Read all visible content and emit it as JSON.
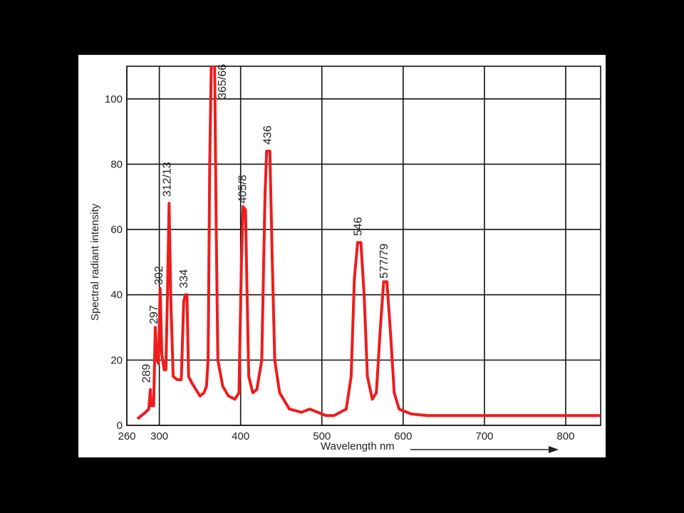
{
  "chart_data": {
    "type": "line",
    "xlabel": "Wavelength nm",
    "ylabel": "Spectral radiant intensity",
    "xlim": [
      260,
      843
    ],
    "ylim": [
      0,
      110
    ],
    "xticks": [
      260,
      300,
      400,
      500,
      600,
      700,
      800
    ],
    "yticks": [
      0,
      20,
      40,
      60,
      80,
      100
    ],
    "grid": true,
    "x": [
      273,
      278,
      283,
      287,
      289,
      290,
      293,
      295,
      297,
      299,
      301,
      303,
      306,
      308,
      310,
      312,
      314,
      317,
      322,
      327,
      330,
      332,
      334,
      336,
      340,
      345,
      350,
      355,
      358,
      360,
      362,
      364,
      368,
      370,
      372,
      378,
      385,
      393,
      398,
      401,
      403,
      406,
      408,
      410,
      415,
      420,
      426,
      430,
      432,
      436,
      439,
      442,
      448,
      460,
      475,
      485,
      495,
      505,
      515,
      530,
      536,
      540,
      544,
      548,
      552,
      556,
      562,
      567,
      572,
      576,
      580,
      584,
      589,
      595,
      610,
      630,
      700,
      843
    ],
    "series": [
      {
        "color": "#ee1c1c",
        "values": [
          2,
          3,
          4,
          5,
          11,
          6,
          6,
          30,
          20,
          19,
          42,
          22,
          17,
          17,
          40,
          68,
          40,
          15,
          14,
          14,
          38,
          40,
          40,
          15,
          13,
          11,
          9,
          10,
          12,
          20,
          80,
          112,
          112,
          60,
          20,
          12,
          9,
          8,
          10,
          50,
          67,
          66,
          40,
          15,
          10,
          11,
          20,
          70,
          84,
          84,
          50,
          20,
          10,
          5,
          4,
          5,
          4,
          3,
          3,
          5,
          15,
          45,
          56,
          56,
          40,
          15,
          8,
          10,
          30,
          44,
          44,
          30,
          10,
          5,
          3.5,
          3,
          3,
          3
        ]
      }
    ],
    "annotations": [
      {
        "label": "289",
        "x": 285,
        "y": 13
      },
      {
        "label": "297",
        "x": 294,
        "y": 31
      },
      {
        "label": "302",
        "x": 300,
        "y": 43
      },
      {
        "label": "312/13",
        "x": 310,
        "y": 70
      },
      {
        "label": "334",
        "x": 331,
        "y": 42
      },
      {
        "label": "365/66",
        "x": 378,
        "y": 100
      },
      {
        "label": "405/8",
        "x": 403,
        "y": 68
      },
      {
        "label": "436",
        "x": 434,
        "y": 86
      },
      {
        "label": "546",
        "x": 545,
        "y": 58
      },
      {
        "label": "577/79",
        "x": 577,
        "y": 45
      }
    ]
  }
}
